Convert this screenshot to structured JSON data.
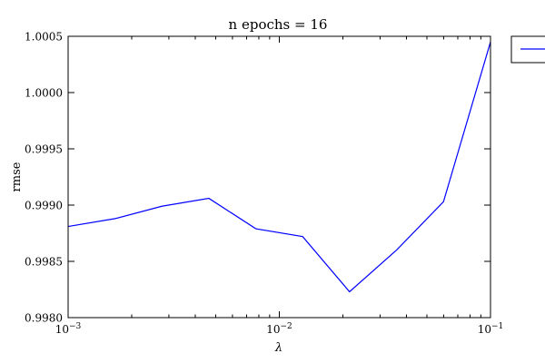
{
  "chart_data": {
    "type": "line",
    "title": "n epochs = 16",
    "xlabel": "λ",
    "ylabel": "rmse",
    "xscale": "log",
    "xlim": [
      0.001,
      0.1
    ],
    "ylim": [
      0.998,
      1.0005
    ],
    "grid": false,
    "legend": "outside top-right",
    "x_ticks": [
      {
        "value": 0.001,
        "base": "10",
        "exp": "−3"
      },
      {
        "value": 0.01,
        "base": "10",
        "exp": "−2"
      },
      {
        "value": 0.1,
        "base": "10",
        "exp": "−1"
      }
    ],
    "y_ticks": [
      {
        "value": 0.998,
        "label": "0.9980"
      },
      {
        "value": 0.9985,
        "label": "0.9985"
      },
      {
        "value": 0.999,
        "label": "0.9990"
      },
      {
        "value": 0.9995,
        "label": "0.9995"
      },
      {
        "value": 1.0,
        "label": "1.0000"
      },
      {
        "value": 1.0005,
        "label": "1.0005"
      }
    ],
    "series": [
      {
        "color": "#0000ff",
        "x": [
          0.001,
          0.00167,
          0.00278,
          0.00464,
          0.00774,
          0.0129,
          0.0215,
          0.0359,
          0.0599,
          0.1
        ],
        "y": [
          0.99881,
          0.99888,
          0.99899,
          0.99906,
          0.99879,
          0.99872,
          0.99823,
          0.9986,
          0.99903,
          1.00045
        ]
      }
    ]
  }
}
